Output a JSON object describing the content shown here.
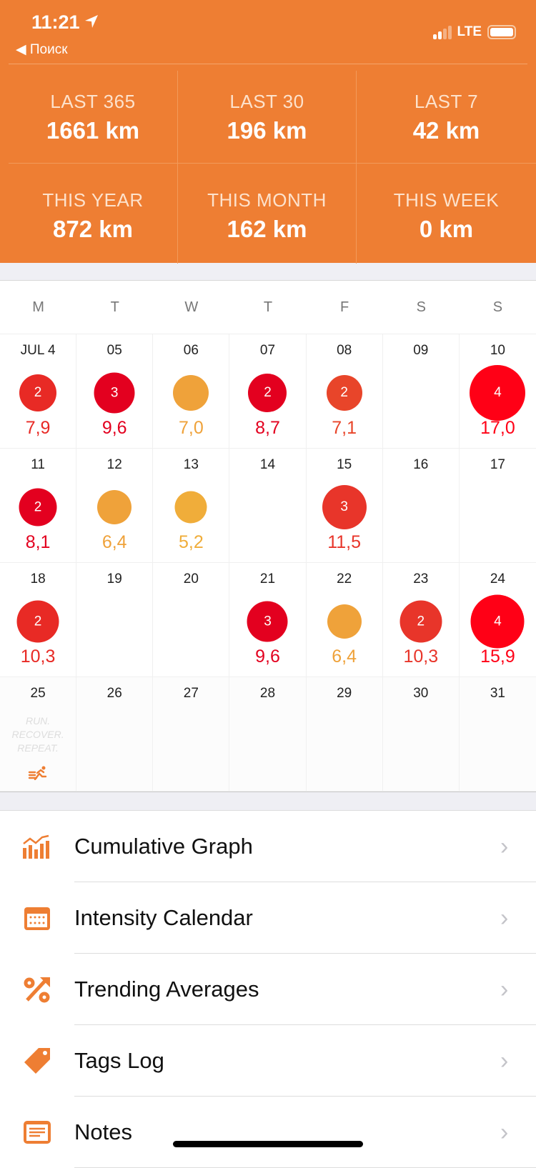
{
  "status": {
    "time": "11:21",
    "network": "LTE",
    "back_label": "Поиск"
  },
  "stats": [
    {
      "label": "LAST 365",
      "value": "1661 km"
    },
    {
      "label": "LAST 30",
      "value": "196 km"
    },
    {
      "label": "LAST 7",
      "value": "42 km"
    },
    {
      "label": "THIS YEAR",
      "value": "872 km"
    },
    {
      "label": "THIS MONTH",
      "value": "162 km"
    },
    {
      "label": "THIS WEEK",
      "value": "0 km"
    }
  ],
  "calendar": {
    "weekdays": [
      "M",
      "T",
      "W",
      "T",
      "F",
      "S",
      "S"
    ],
    "motto": "RUN. RECOVER. REPEAT.",
    "days": [
      {
        "date": "JUL 4",
        "intensity": "2",
        "distance": "7,9",
        "color": "#e82a25"
      },
      {
        "date": "05",
        "intensity": "3",
        "distance": "9,6",
        "color": "#e3001f"
      },
      {
        "date": "06",
        "intensity": "",
        "distance": "7,0",
        "color": "#efa23a"
      },
      {
        "date": "07",
        "intensity": "2",
        "distance": "8,7",
        "color": "#e3001f"
      },
      {
        "date": "08",
        "intensity": "2",
        "distance": "7,1",
        "color": "#e8452a"
      },
      {
        "date": "09"
      },
      {
        "date": "10",
        "intensity": "4",
        "distance": "17,0",
        "color": "#ff0016"
      },
      {
        "date": "11",
        "intensity": "2",
        "distance": "8,1",
        "color": "#e3001f"
      },
      {
        "date": "12",
        "intensity": "",
        "distance": "6,4",
        "color": "#efa23a"
      },
      {
        "date": "13",
        "intensity": "",
        "distance": "5,2",
        "color": "#f0ad3a"
      },
      {
        "date": "14"
      },
      {
        "date": "15",
        "intensity": "3",
        "distance": "11,5",
        "color": "#e8352a"
      },
      {
        "date": "16"
      },
      {
        "date": "17"
      },
      {
        "date": "18",
        "intensity": "2",
        "distance": "10,3",
        "color": "#e82a25"
      },
      {
        "date": "19"
      },
      {
        "date": "20"
      },
      {
        "date": "21",
        "intensity": "3",
        "distance": "9,6",
        "color": "#e3001f"
      },
      {
        "date": "22",
        "intensity": "",
        "distance": "6,4",
        "color": "#efa23a"
      },
      {
        "date": "23",
        "intensity": "2",
        "distance": "10,3",
        "color": "#e8352a"
      },
      {
        "date": "24",
        "intensity": "4",
        "distance": "15,9",
        "color": "#ff0016"
      },
      {
        "date": "25",
        "today": true
      },
      {
        "date": "26",
        "future": true
      },
      {
        "date": "27",
        "future": true
      },
      {
        "date": "28",
        "future": true
      },
      {
        "date": "29",
        "future": true
      },
      {
        "date": "30",
        "future": true
      },
      {
        "date": "31",
        "future": true
      }
    ]
  },
  "menu": [
    {
      "label": "Cumulative Graph",
      "icon": "bar-chart-icon"
    },
    {
      "label": "Intensity Calendar",
      "icon": "calendar-icon"
    },
    {
      "label": "Trending Averages",
      "icon": "percent-trend-icon"
    },
    {
      "label": "Tags Log",
      "icon": "tag-icon"
    },
    {
      "label": "Notes",
      "icon": "notes-icon"
    }
  ],
  "accent": "#ee7e33"
}
